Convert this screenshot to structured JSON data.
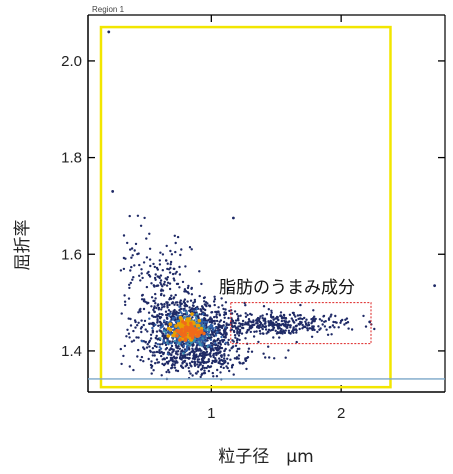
{
  "chart_data": {
    "type": "scatter",
    "title": "",
    "region_label": "Region 1",
    "xlabel": "粒子径　µm",
    "ylabel": "屈折率",
    "xlim": [
      0.05,
      2.8
    ],
    "ylim": [
      1.315,
      2.095
    ],
    "x_ticks": [
      1,
      2
    ],
    "y_ticks": [
      1.4,
      1.6,
      1.8,
      2.0
    ],
    "x_tick_labels": [
      "1",
      "2"
    ],
    "y_tick_labels": [
      "1.4",
      "1.6",
      "1.8",
      "2.0"
    ],
    "gate": {
      "x": [
        0.15,
        2.38
      ],
      "y": [
        1.325,
        2.07
      ],
      "color": "#f2e600"
    },
    "highlight": {
      "label": "脂肪のうまみ成分",
      "x": [
        1.15,
        2.23
      ],
      "y": [
        1.415,
        1.5
      ],
      "color": "#dd2222"
    },
    "reference_line": {
      "y": 1.342,
      "color": "#7aa6c8"
    },
    "density_colors": [
      "#1f2a66",
      "#2f5fa8",
      "#3a8fb0",
      "#e8a000",
      "#f06a1a"
    ],
    "points": [
      {
        "x": 0.21,
        "y": 2.06
      },
      {
        "x": 0.24,
        "y": 1.73
      },
      {
        "x": 1.17,
        "y": 1.675
      },
      {
        "x": 2.72,
        "y": 1.535
      },
      {
        "x": 2.22,
        "y": 1.46
      }
    ],
    "clusters": [
      {
        "cx": 0.85,
        "cy": 1.44,
        "sx": 0.2,
        "sy": 0.035,
        "n": 900,
        "density": 0
      },
      {
        "cx": 0.65,
        "cy": 1.52,
        "sx": 0.1,
        "sy": 0.05,
        "n": 160,
        "density": 0
      },
      {
        "cx": 0.42,
        "cy": 1.59,
        "sx": 0.06,
        "sy": 0.04,
        "n": 45,
        "density": 0
      },
      {
        "cx": 1.5,
        "cy": 1.455,
        "sx": 0.28,
        "sy": 0.012,
        "n": 380,
        "density": 0
      },
      {
        "cx": 0.9,
        "cy": 1.38,
        "sx": 0.22,
        "sy": 0.015,
        "n": 220,
        "density": 0
      },
      {
        "cx": 0.82,
        "cy": 1.44,
        "sx": 0.11,
        "sy": 0.02,
        "n": 320,
        "density": 1
      },
      {
        "cx": 0.82,
        "cy": 1.44,
        "sx": 0.07,
        "sy": 0.014,
        "n": 160,
        "density": 2
      },
      {
        "cx": 0.82,
        "cy": 1.445,
        "sx": 0.06,
        "sy": 0.011,
        "n": 90,
        "density": 3
      },
      {
        "cx": 0.84,
        "cy": 1.44,
        "sx": 0.045,
        "sy": 0.008,
        "n": 60,
        "density": 4
      }
    ]
  }
}
